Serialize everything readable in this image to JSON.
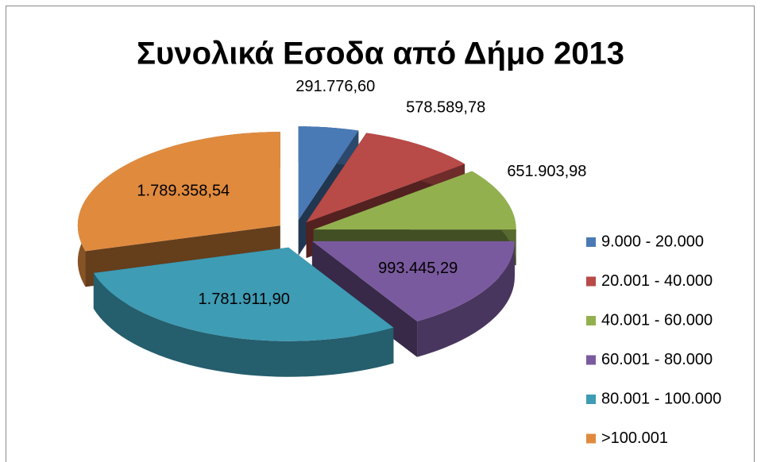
{
  "chart_data": {
    "type": "pie",
    "title": "Συνολικά Εσοδα από Δήμο 2013",
    "categories": [
      "9.000 - 20.000",
      "20.001 - 40.000",
      "40.001 - 60.000",
      "60.001 - 80.000",
      "80.001 - 100.000",
      ">100.001"
    ],
    "values": [
      291776.6,
      578589.78,
      651903.98,
      993445.29,
      1781911.9,
      1789358.54
    ],
    "value_labels": [
      "291.776,60",
      "578.589,78",
      "651.903,98",
      "993.445,29",
      "1.781.911,90",
      "1.789.358,54"
    ],
    "colors": [
      "#4a7ab5",
      "#b84a47",
      "#93b04f",
      "#7a5a9e",
      "#3e9cb5",
      "#e08a3e"
    ],
    "legend": "right"
  }
}
